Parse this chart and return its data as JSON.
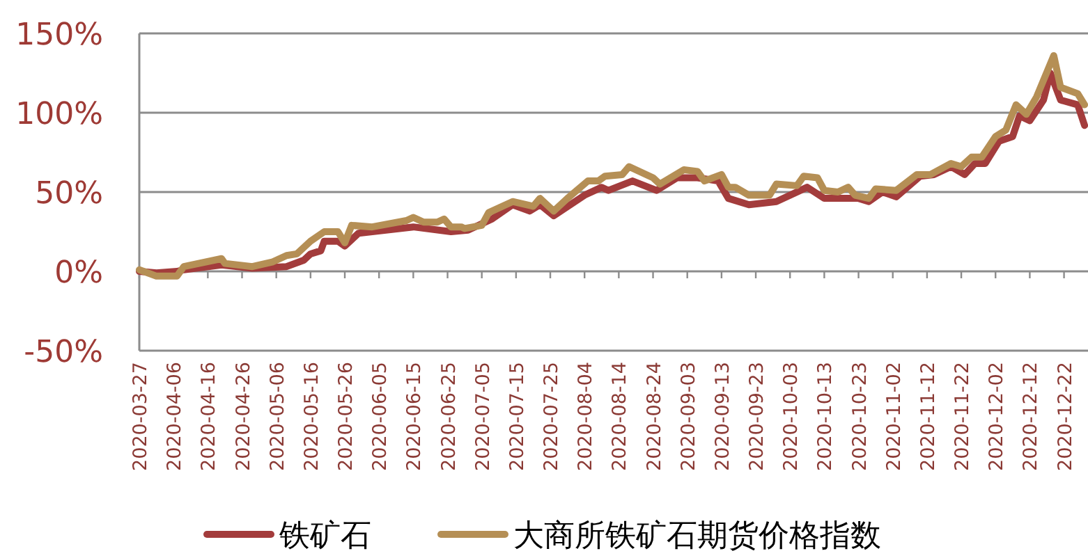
{
  "chart_data": {
    "type": "line",
    "legend": "bottom",
    "grid": "y",
    "marker": "none",
    "line_style": "solid",
    "xlim": [
      "2020-03-27",
      "2020-12-29"
    ],
    "xticks": [
      "2020-03-27",
      "2020-04-06",
      "2020-04-16",
      "2020-04-26",
      "2020-05-06",
      "2020-05-16",
      "2020-05-26",
      "2020-06-05",
      "2020-06-15",
      "2020-06-25",
      "2020-07-05",
      "2020-07-15",
      "2020-07-25",
      "2020-08-04",
      "2020-08-14",
      "2020-08-24",
      "2020-09-03",
      "2020-09-13",
      "2020-09-23",
      "2020-10-03",
      "2020-10-13",
      "2020-10-23",
      "2020-11-02",
      "2020-11-12",
      "2020-11-22",
      "2020-12-02",
      "2020-12-12",
      "2020-12-22"
    ],
    "ylim": [
      -50,
      150
    ],
    "yticks": [
      {
        "value": -50,
        "label": "-50%"
      },
      {
        "value": 0,
        "label": "0%"
      },
      {
        "value": 50,
        "label": "50%"
      },
      {
        "value": 100,
        "label": "100%"
      },
      {
        "value": 150,
        "label": "150%"
      }
    ],
    "series": [
      {
        "name": "铁矿石",
        "color": "#a33c3c",
        "x": [
          "2020-03-27",
          "2020-04-01",
          "2020-04-07",
          "2020-04-09",
          "2020-04-20",
          "2020-04-29",
          "2020-05-09",
          "2020-05-14",
          "2020-05-16",
          "2020-05-19",
          "2020-05-20",
          "2020-05-24",
          "2020-05-26",
          "2020-05-30",
          "2020-06-15",
          "2020-06-26",
          "2020-07-01",
          "2020-07-08",
          "2020-07-14",
          "2020-07-19",
          "2020-07-22",
          "2020-07-26",
          "2020-08-04",
          "2020-08-09",
          "2020-08-11",
          "2020-08-18",
          "2020-08-25",
          "2020-08-31",
          "2020-09-06",
          "2020-09-12",
          "2020-09-15",
          "2020-09-21",
          "2020-09-29",
          "2020-10-08",
          "2020-10-13",
          "2020-10-23",
          "2020-10-26",
          "2020-10-30",
          "2020-11-03",
          "2020-11-10",
          "2020-11-14",
          "2020-11-19",
          "2020-11-23",
          "2020-11-26",
          "2020-11-29",
          "2020-12-03",
          "2020-12-07",
          "2020-12-09",
          "2020-12-12",
          "2020-12-16",
          "2020-12-18",
          "2020-12-21",
          "2020-12-26",
          "2020-12-28"
        ],
        "values": [
          0,
          -1,
          0,
          1,
          4,
          2,
          3,
          7,
          11,
          13,
          19,
          19,
          16,
          24,
          28,
          25,
          26,
          33,
          42,
          38,
          42,
          35,
          48,
          53,
          51,
          57,
          51,
          59,
          59,
          57,
          46,
          42,
          44,
          53,
          46,
          46,
          44,
          50,
          47,
          60,
          61,
          66,
          61,
          68,
          68,
          82,
          85,
          98,
          95,
          108,
          125,
          108,
          105,
          92
        ]
      },
      {
        "name": "大商所铁矿石期货价格指数",
        "color": "#b58f55",
        "x": [
          "2020-03-27",
          "2020-04-01",
          "2020-04-07",
          "2020-04-09",
          "2020-04-20",
          "2020-04-21",
          "2020-04-29",
          "2020-05-05",
          "2020-05-09",
          "2020-05-12",
          "2020-05-16",
          "2020-05-20",
          "2020-05-24",
          "2020-05-26",
          "2020-05-28",
          "2020-06-03",
          "2020-06-13",
          "2020-06-15",
          "2020-06-18",
          "2020-06-22",
          "2020-06-24",
          "2020-06-26",
          "2020-06-29",
          "2020-06-30",
          "2020-07-05",
          "2020-07-07",
          "2020-07-14",
          "2020-07-20",
          "2020-07-22",
          "2020-07-26",
          "2020-07-30",
          "2020-08-05",
          "2020-08-08",
          "2020-08-10",
          "2020-08-15",
          "2020-08-17",
          "2020-08-24",
          "2020-08-26",
          "2020-09-02",
          "2020-09-06",
          "2020-09-08",
          "2020-09-13",
          "2020-09-15",
          "2020-09-17",
          "2020-09-21",
          "2020-09-27",
          "2020-09-29",
          "2020-10-05",
          "2020-10-07",
          "2020-10-11",
          "2020-10-13",
          "2020-10-17",
          "2020-10-20",
          "2020-10-22",
          "2020-10-26",
          "2020-10-28",
          "2020-11-03",
          "2020-11-09",
          "2020-11-13",
          "2020-11-19",
          "2020-11-22",
          "2020-11-25",
          "2020-11-28",
          "2020-12-02",
          "2020-12-05",
          "2020-12-08",
          "2020-12-11",
          "2020-12-14",
          "2020-12-19",
          "2020-12-21",
          "2020-12-26",
          "2020-12-28"
        ],
        "values": [
          1,
          -3,
          -3,
          3,
          8,
          5,
          3,
          6,
          10,
          11,
          19,
          25,
          25,
          18,
          29,
          28,
          32,
          34,
          31,
          31,
          33,
          28,
          28,
          27,
          29,
          37,
          44,
          41,
          46,
          38,
          46,
          57,
          57,
          60,
          61,
          66,
          59,
          55,
          64,
          63,
          57,
          61,
          53,
          53,
          48,
          48,
          55,
          54,
          60,
          59,
          51,
          50,
          53,
          48,
          46,
          52,
          51,
          61,
          61,
          68,
          66,
          72,
          72,
          85,
          89,
          105,
          99,
          110,
          136,
          116,
          112,
          105
        ]
      }
    ]
  }
}
